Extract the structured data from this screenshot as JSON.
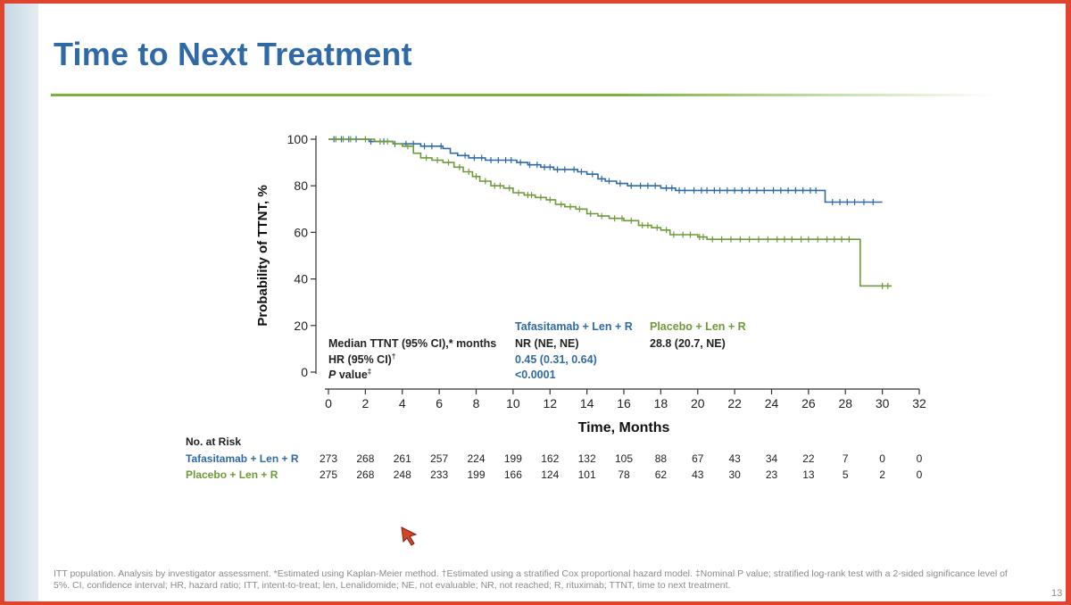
{
  "slide": {
    "title": "Time to Next Treatment",
    "footnote": "ITT population. Analysis by investigator assessment. *Estimated using Kaplan-Meier method. †Estimated using a stratified Cox proportional hazard model. ‡Nominal P value; stratified log-rank test with a 2-sided significance level of 5%. CI, confidence interval; HR, hazard ratio; ITT, intent-to-treat; len, Lenalidomide; NE, not evaluable; NR, not reached; R, rituximab; TTNT, time to next treatment.",
    "page_number": "13"
  },
  "colors": {
    "title": "#2f6aa6",
    "tafasitamab": "#2f6aa6",
    "placebo": "#6f9a3a",
    "rule": "#7bb23f"
  },
  "icons": {
    "cursor": "cursor-pointer-icon"
  },
  "stats": {
    "median_label": "Median TTNT (95% CI),* months",
    "hr_label": "HR (95% CI)",
    "hr_label_sup": "†",
    "p_label_italic": "P",
    "p_label_rest": " value",
    "p_label_sup": "‡",
    "tafasitamab_header": "Tafasitamab + Len + R",
    "placebo_header": "Placebo + Len + R",
    "tafasitamab_median": "NR (NE, NE)",
    "placebo_median": "28.8 (20.7, NE)",
    "hr_value": "0.45 (0.31, 0.64)",
    "p_value": "<0.0001"
  },
  "chart_data": {
    "type": "line",
    "title": "",
    "xlabel": "Time, Months",
    "ylabel": "Probability of TTNT, %",
    "xlim": [
      0,
      32
    ],
    "ylim": [
      0,
      100
    ],
    "xticks": [
      0,
      2,
      4,
      6,
      8,
      10,
      12,
      14,
      16,
      18,
      20,
      22,
      24,
      26,
      28,
      30,
      32
    ],
    "yticks": [
      0,
      20,
      40,
      60,
      80,
      100
    ],
    "grid": false,
    "legend": "none",
    "series": [
      {
        "name": "Tafasitamab + Len + R",
        "color": "#2f6aa6",
        "points": [
          [
            0,
            100
          ],
          [
            1.4,
            100
          ],
          [
            2.2,
            99
          ],
          [
            3.5,
            98
          ],
          [
            5,
            97
          ],
          [
            6.2,
            96
          ],
          [
            6.6,
            94
          ],
          [
            7,
            93
          ],
          [
            7.6,
            92
          ],
          [
            8.5,
            91
          ],
          [
            9.5,
            91
          ],
          [
            10.2,
            90
          ],
          [
            10.8,
            89
          ],
          [
            11.5,
            88
          ],
          [
            12.2,
            87
          ],
          [
            13.5,
            86
          ],
          [
            14,
            85
          ],
          [
            14.6,
            83
          ],
          [
            15,
            82
          ],
          [
            15.6,
            81
          ],
          [
            16.2,
            80
          ],
          [
            17,
            80
          ],
          [
            18,
            79
          ],
          [
            18.8,
            78
          ],
          [
            19.5,
            78
          ],
          [
            21,
            78
          ],
          [
            22,
            78
          ],
          [
            24,
            78
          ],
          [
            25,
            78
          ],
          [
            26.5,
            78
          ],
          [
            26.9,
            73
          ],
          [
            28,
            73
          ],
          [
            30,
            73
          ]
        ],
        "censors": [
          0.3,
          0.7,
          1.1,
          1.5,
          2.3,
          3.0,
          3.6,
          4.2,
          4.6,
          5.2,
          5.6,
          6.1,
          7.4,
          7.9,
          8.3,
          8.8,
          9.2,
          9.6,
          9.9,
          10.4,
          10.9,
          11.3,
          11.7,
          12.0,
          12.4,
          12.8,
          13.3,
          13.7,
          14.3,
          14.8,
          15.2,
          15.8,
          16.4,
          16.9,
          17.3,
          17.7,
          18.3,
          18.6,
          19.0,
          19.3,
          19.8,
          20.2,
          20.5,
          20.9,
          21.2,
          21.6,
          22.0,
          22.4,
          22.8,
          23.2,
          23.6,
          24.1,
          24.5,
          24.9,
          25.3,
          25.7,
          26.1,
          26.4,
          27.3,
          27.7,
          28.1,
          28.5,
          29.0,
          29.5
        ]
      },
      {
        "name": "Placebo + Len + R",
        "color": "#6f9a3a",
        "points": [
          [
            0,
            100
          ],
          [
            1.5,
            100
          ],
          [
            2.5,
            99
          ],
          [
            3.5,
            98
          ],
          [
            4,
            97
          ],
          [
            4.6,
            94
          ],
          [
            5,
            92
          ],
          [
            5.6,
            91
          ],
          [
            6.2,
            90
          ],
          [
            6.8,
            88
          ],
          [
            7.3,
            86
          ],
          [
            7.8,
            84
          ],
          [
            8.2,
            82
          ],
          [
            8.8,
            80
          ],
          [
            9.5,
            79
          ],
          [
            10,
            77
          ],
          [
            10.6,
            76
          ],
          [
            11.2,
            75
          ],
          [
            11.8,
            74
          ],
          [
            12.3,
            72
          ],
          [
            12.8,
            71
          ],
          [
            13.4,
            70
          ],
          [
            14,
            68
          ],
          [
            14.6,
            67
          ],
          [
            15.2,
            66
          ],
          [
            16,
            65
          ],
          [
            16.8,
            63
          ],
          [
            17.5,
            62
          ],
          [
            18,
            61
          ],
          [
            18.5,
            59
          ],
          [
            19,
            59
          ],
          [
            20,
            58
          ],
          [
            20.5,
            57
          ],
          [
            21.5,
            57
          ],
          [
            24,
            57
          ],
          [
            27,
            57
          ],
          [
            28.6,
            57
          ],
          [
            28.8,
            37
          ],
          [
            30.5,
            37
          ]
        ],
        "censors": [
          0.4,
          0.8,
          1.2,
          2.0,
          2.8,
          3.2,
          4.3,
          5.3,
          5.9,
          6.5,
          7.1,
          7.6,
          8.0,
          8.5,
          9.0,
          9.3,
          9.8,
          10.3,
          10.8,
          11.0,
          11.5,
          12.0,
          12.6,
          13.1,
          13.6,
          14.2,
          14.8,
          15.5,
          15.9,
          16.4,
          17.0,
          17.3,
          17.8,
          18.3,
          18.7,
          19.2,
          19.6,
          20.1,
          20.3,
          20.8,
          21.3,
          21.8,
          22.3,
          22.8,
          23.3,
          23.8,
          24.3,
          24.7,
          25.1,
          25.6,
          26.0,
          26.5,
          27.0,
          27.4,
          27.8,
          28.2,
          30.0,
          30.3
        ]
      }
    ]
  },
  "risk_table": {
    "header": "No. at Risk",
    "rows": [
      {
        "label": "Tafasitamab + Len + R",
        "color": "#2f6aa6",
        "values": [
          "273",
          "268",
          "261",
          "257",
          "224",
          "199",
          "162",
          "132",
          "105",
          "88",
          "67",
          "43",
          "34",
          "22",
          "7",
          "0",
          "0"
        ]
      },
      {
        "label": "Placebo + Len + R",
        "color": "#6f9a3a",
        "values": [
          "275",
          "268",
          "248",
          "233",
          "199",
          "166",
          "124",
          "101",
          "78",
          "62",
          "43",
          "30",
          "23",
          "13",
          "5",
          "2",
          "0"
        ]
      }
    ]
  }
}
